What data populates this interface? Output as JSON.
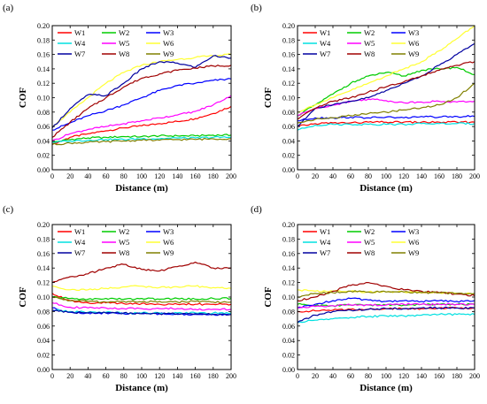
{
  "colors": {
    "W1": "#ff0000",
    "W2": "#00cc00",
    "W3": "#0000ff",
    "W4": "#00e0e0",
    "W5": "#ff00ff",
    "W6": "#ffff33",
    "W7": "#0000a0",
    "W8": "#a00000",
    "W9": "#808000"
  },
  "chart_data": [
    {
      "panel_label": "(a)",
      "type": "line",
      "xlabel": "Distance (m)",
      "ylabel": "COF",
      "xlim": [
        0,
        200
      ],
      "ylim": [
        0,
        0.2
      ],
      "xticks": [
        "0",
        "20",
        "40",
        "60",
        "80",
        "100",
        "120",
        "140",
        "160",
        "180",
        "200"
      ],
      "yticks": [
        "0.00",
        "0.02",
        "0.04",
        "0.06",
        "0.08",
        "0.10",
        "0.12",
        "0.14",
        "0.16",
        "0.18",
        "0.20"
      ],
      "legend": [
        "W1",
        "W4",
        "W7",
        "W2",
        "W5",
        "W8",
        "W3",
        "W6",
        "W9"
      ],
      "x": [
        0,
        20,
        40,
        60,
        80,
        100,
        120,
        140,
        160,
        180,
        200
      ],
      "series": [
        {
          "name": "W1",
          "values": [
            0.035,
            0.045,
            0.05,
            0.054,
            0.058,
            0.061,
            0.064,
            0.067,
            0.071,
            0.078,
            0.088
          ]
        },
        {
          "name": "W2",
          "values": [
            0.038,
            0.042,
            0.044,
            0.045,
            0.046,
            0.046,
            0.047,
            0.047,
            0.047,
            0.048,
            0.048
          ]
        },
        {
          "name": "W3",
          "values": [
            0.055,
            0.065,
            0.075,
            0.082,
            0.09,
            0.1,
            0.11,
            0.117,
            0.12,
            0.124,
            0.126
          ]
        },
        {
          "name": "W4",
          "values": [
            0.038,
            0.04,
            0.041,
            0.042,
            0.042,
            0.043,
            0.043,
            0.044,
            0.044,
            0.045,
            0.045
          ]
        },
        {
          "name": "W5",
          "values": [
            0.04,
            0.05,
            0.056,
            0.06,
            0.064,
            0.068,
            0.072,
            0.076,
            0.081,
            0.09,
            0.103
          ]
        },
        {
          "name": "W6",
          "values": [
            0.06,
            0.08,
            0.1,
            0.12,
            0.135,
            0.145,
            0.15,
            0.153,
            0.156,
            0.158,
            0.16
          ]
        },
        {
          "name": "W7",
          "values": [
            0.058,
            0.085,
            0.104,
            0.103,
            0.12,
            0.14,
            0.15,
            0.148,
            0.142,
            0.158,
            0.155
          ]
        },
        {
          "name": "W8",
          "values": [
            0.045,
            0.066,
            0.085,
            0.1,
            0.115,
            0.127,
            0.133,
            0.138,
            0.141,
            0.144,
            0.145
          ]
        },
        {
          "name": "W9",
          "values": [
            0.035,
            0.037,
            0.038,
            0.039,
            0.04,
            0.041,
            0.041,
            0.042,
            0.042,
            0.043,
            0.043
          ]
        }
      ]
    },
    {
      "panel_label": "(b)",
      "type": "line",
      "xlabel": "Distance (m)",
      "ylabel": "COF",
      "xlim": [
        0,
        200
      ],
      "ylim": [
        0,
        0.2
      ],
      "xticks": [
        "0",
        "20",
        "40",
        "60",
        "80",
        "100",
        "120",
        "140",
        "160",
        "180",
        "200"
      ],
      "yticks": [
        "0.00",
        "0.02",
        "0.04",
        "0.06",
        "0.08",
        "0.10",
        "0.12",
        "0.14",
        "0.16",
        "0.18",
        "0.20"
      ],
      "legend": [
        "W1",
        "W4",
        "W7",
        "W2",
        "W5",
        "W8",
        "W3",
        "W6",
        "W9"
      ],
      "x": [
        0,
        20,
        40,
        60,
        80,
        100,
        120,
        140,
        160,
        180,
        200
      ],
      "series": [
        {
          "name": "W1",
          "values": [
            0.06,
            0.064,
            0.065,
            0.065,
            0.066,
            0.066,
            0.066,
            0.066,
            0.066,
            0.066,
            0.066
          ]
        },
        {
          "name": "W2",
          "values": [
            0.075,
            0.09,
            0.105,
            0.12,
            0.13,
            0.135,
            0.13,
            0.138,
            0.14,
            0.142,
            0.132
          ]
        },
        {
          "name": "W3",
          "values": [
            0.068,
            0.072,
            0.072,
            0.073,
            0.072,
            0.073,
            0.072,
            0.074,
            0.073,
            0.074,
            0.074
          ]
        },
        {
          "name": "W4",
          "values": [
            0.055,
            0.062,
            0.063,
            0.063,
            0.063,
            0.063,
            0.063,
            0.064,
            0.064,
            0.064,
            0.064
          ]
        },
        {
          "name": "W5",
          "values": [
            0.075,
            0.085,
            0.09,
            0.095,
            0.098,
            0.096,
            0.093,
            0.094,
            0.095,
            0.094,
            0.095
          ]
        },
        {
          "name": "W6",
          "values": [
            0.08,
            0.09,
            0.1,
            0.11,
            0.12,
            0.13,
            0.14,
            0.15,
            0.165,
            0.182,
            0.2
          ]
        },
        {
          "name": "W7",
          "values": [
            0.06,
            0.085,
            0.09,
            0.095,
            0.1,
            0.11,
            0.12,
            0.13,
            0.145,
            0.16,
            0.175
          ]
        },
        {
          "name": "W8",
          "values": [
            0.07,
            0.085,
            0.095,
            0.1,
            0.108,
            0.115,
            0.122,
            0.13,
            0.138,
            0.145,
            0.15
          ]
        },
        {
          "name": "W9",
          "values": [
            0.065,
            0.07,
            0.072,
            0.075,
            0.078,
            0.08,
            0.083,
            0.086,
            0.09,
            0.1,
            0.12
          ]
        }
      ]
    },
    {
      "panel_label": "(c)",
      "type": "line",
      "xlabel": "Distance (m)",
      "ylabel": "COF",
      "xlim": [
        0,
        200
      ],
      "ylim": [
        0,
        0.2
      ],
      "xticks": [
        "0",
        "20",
        "40",
        "60",
        "80",
        "100",
        "120",
        "140",
        "160",
        "180",
        "200"
      ],
      "yticks": [
        "0.00",
        "0.02",
        "0.04",
        "0.06",
        "0.08",
        "0.10",
        "0.12",
        "0.14",
        "0.16",
        "0.18",
        "0.20"
      ],
      "legend": [
        "W1",
        "W4",
        "W7",
        "W2",
        "W5",
        "W8",
        "W3",
        "W6",
        "W9"
      ],
      "x": [
        0,
        20,
        40,
        60,
        80,
        100,
        120,
        140,
        160,
        180,
        200
      ],
      "series": [
        {
          "name": "W1",
          "values": [
            0.105,
            0.095,
            0.092,
            0.092,
            0.091,
            0.091,
            0.09,
            0.09,
            0.09,
            0.09,
            0.09
          ]
        },
        {
          "name": "W2",
          "values": [
            0.1,
            0.098,
            0.097,
            0.098,
            0.097,
            0.098,
            0.097,
            0.098,
            0.097,
            0.098,
            0.098
          ]
        },
        {
          "name": "W3",
          "values": [
            0.085,
            0.079,
            0.078,
            0.078,
            0.077,
            0.077,
            0.077,
            0.076,
            0.076,
            0.076,
            0.076
          ]
        },
        {
          "name": "W4",
          "values": [
            0.082,
            0.08,
            0.079,
            0.079,
            0.078,
            0.078,
            0.078,
            0.078,
            0.078,
            0.078,
            0.078
          ]
        },
        {
          "name": "W5",
          "values": [
            0.092,
            0.086,
            0.085,
            0.085,
            0.084,
            0.084,
            0.084,
            0.084,
            0.083,
            0.083,
            0.083
          ]
        },
        {
          "name": "W6",
          "values": [
            0.115,
            0.11,
            0.11,
            0.112,
            0.114,
            0.115,
            0.113,
            0.114,
            0.115,
            0.113,
            0.112
          ]
        },
        {
          "name": "W7",
          "values": [
            0.082,
            0.079,
            0.078,
            0.078,
            0.078,
            0.077,
            0.077,
            0.077,
            0.077,
            0.076,
            0.076
          ]
        },
        {
          "name": "W8",
          "values": [
            0.12,
            0.128,
            0.132,
            0.14,
            0.145,
            0.138,
            0.136,
            0.142,
            0.148,
            0.14,
            0.14
          ]
        },
        {
          "name": "W9",
          "values": [
            0.1,
            0.095,
            0.094,
            0.093,
            0.094,
            0.093,
            0.094,
            0.093,
            0.094,
            0.093,
            0.093
          ]
        }
      ]
    },
    {
      "panel_label": "(d)",
      "type": "line",
      "xlabel": "Distance (m)",
      "ylabel": "COF",
      "xlim": [
        0,
        200
      ],
      "ylim": [
        0,
        0.2
      ],
      "xticks": [
        "0",
        "20",
        "40",
        "60",
        "80",
        "100",
        "120",
        "140",
        "160",
        "180",
        "200"
      ],
      "yticks": [
        "0.00",
        "0.02",
        "0.04",
        "0.06",
        "0.08",
        "0.10",
        "0.12",
        "0.14",
        "0.16",
        "0.18",
        "0.20"
      ],
      "legend": [
        "W1",
        "W4",
        "W7",
        "W2",
        "W5",
        "W8",
        "W3",
        "W6",
        "W9"
      ],
      "x": [
        0,
        20,
        40,
        60,
        80,
        100,
        120,
        140,
        160,
        180,
        200
      ],
      "series": [
        {
          "name": "W1",
          "values": [
            0.08,
            0.081,
            0.082,
            0.083,
            0.083,
            0.084,
            0.084,
            0.084,
            0.085,
            0.085,
            0.085
          ]
        },
        {
          "name": "W2",
          "values": [
            0.09,
            0.088,
            0.088,
            0.089,
            0.089,
            0.089,
            0.089,
            0.09,
            0.09,
            0.09,
            0.09
          ]
        },
        {
          "name": "W3",
          "values": [
            0.085,
            0.09,
            0.095,
            0.098,
            0.096,
            0.094,
            0.095,
            0.094,
            0.095,
            0.094,
            0.095
          ]
        },
        {
          "name": "W4",
          "values": [
            0.065,
            0.068,
            0.07,
            0.072,
            0.073,
            0.074,
            0.074,
            0.075,
            0.076,
            0.076,
            0.076
          ]
        },
        {
          "name": "W5",
          "values": [
            0.085,
            0.087,
            0.088,
            0.089,
            0.089,
            0.089,
            0.09,
            0.09,
            0.09,
            0.09,
            0.09
          ]
        },
        {
          "name": "W6",
          "values": [
            0.11,
            0.108,
            0.108,
            0.108,
            0.107,
            0.107,
            0.107,
            0.106,
            0.106,
            0.105,
            0.105
          ]
        },
        {
          "name": "W7",
          "values": [
            0.065,
            0.075,
            0.08,
            0.082,
            0.083,
            0.084,
            0.084,
            0.085,
            0.085,
            0.085,
            0.085
          ]
        },
        {
          "name": "W8",
          "values": [
            0.095,
            0.1,
            0.108,
            0.116,
            0.12,
            0.115,
            0.11,
            0.108,
            0.106,
            0.104,
            0.102
          ]
        },
        {
          "name": "W9",
          "values": [
            0.1,
            0.105,
            0.106,
            0.108,
            0.107,
            0.107,
            0.107,
            0.106,
            0.106,
            0.105,
            0.105
          ]
        }
      ]
    }
  ]
}
